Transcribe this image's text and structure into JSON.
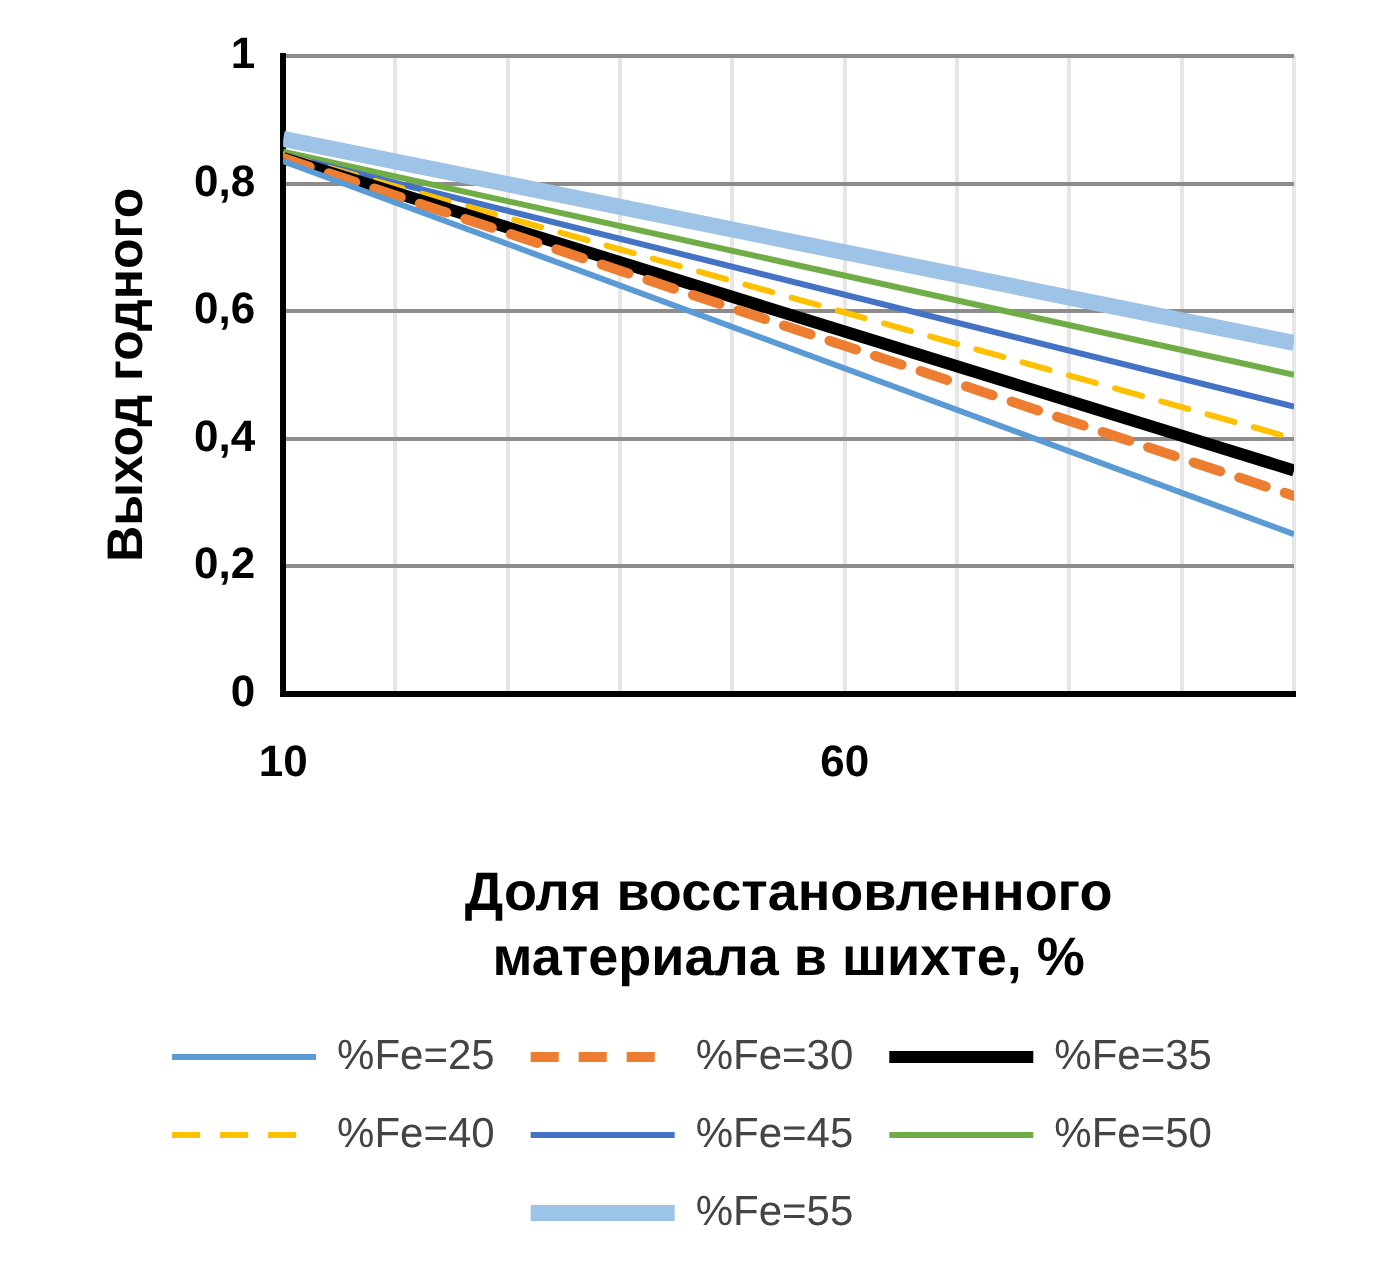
{
  "chart_data": {
    "type": "line",
    "xlabel": "Доля восстановленного материала в шихте, %",
    "ylabel": "Выход годного",
    "x": [
      10,
      100
    ],
    "xlim": [
      10,
      100
    ],
    "xticks": [
      10,
      {
        "value": 20,
        "label": null
      },
      {
        "value": 30,
        "label": null
      },
      {
        "value": 40,
        "label": null
      },
      {
        "value": 50,
        "label": null
      },
      60,
      {
        "value": 70,
        "label": null
      },
      {
        "value": 80,
        "label": null
      },
      {
        "value": 90,
        "label": null
      },
      {
        "value": 100,
        "label": null
      }
    ],
    "ylim": [
      0,
      1
    ],
    "yticks": [
      0,
      {
        "value": 0.2,
        "label": "0,2"
      },
      {
        "value": 0.4,
        "label": "0,4"
      },
      {
        "value": 0.6,
        "label": "0,6"
      },
      {
        "value": 0.8,
        "label": "0,8"
      },
      1
    ],
    "grid": true,
    "legend": "bottom",
    "marker": "none",
    "series": [
      {
        "name": "%Fe=25",
        "color": "#5b9bd5",
        "values": [
          0.835,
          0.25
        ],
        "line_style": "solid"
      },
      {
        "name": "%Fe=30",
        "color": "#ed7d31",
        "values": [
          0.84,
          0.31
        ],
        "line_style": "dashed"
      },
      {
        "name": "%Fe=35",
        "color": "#000000",
        "values": [
          0.84,
          0.35
        ],
        "line_style": "solid"
      },
      {
        "name": "%Fe=40",
        "color": "#ffc000",
        "values": [
          0.845,
          0.4
        ],
        "line_style": "dashed"
      },
      {
        "name": "%Fe=45",
        "color": "#4472c4",
        "values": [
          0.845,
          0.45
        ],
        "line_style": "solid"
      },
      {
        "name": "%Fe=50",
        "color": "#70ad47",
        "values": [
          0.85,
          0.5
        ],
        "line_style": "solid"
      },
      {
        "name": "%Fe=55",
        "color": "#9dc3e6",
        "values": [
          0.87,
          0.55
        ],
        "line_style": "solid"
      }
    ]
  }
}
